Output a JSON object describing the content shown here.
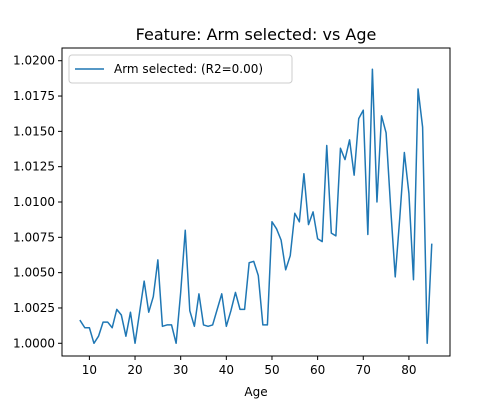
{
  "chart_data": {
    "type": "line",
    "title": "Feature: Arm selected: vs Age",
    "xlabel": "Age",
    "ylabel": "",
    "xlim": [
      4,
      89
    ],
    "ylim": [
      0.9991,
      1.0209
    ],
    "xticks": [
      10,
      20,
      30,
      40,
      50,
      60,
      70,
      80
    ],
    "yticks": [
      1.0,
      1.0025,
      1.005,
      1.0075,
      1.01,
      1.0125,
      1.015,
      1.0175,
      1.02
    ],
    "grid": false,
    "legend_position": "top-left",
    "series": [
      {
        "name": "Arm selected: (R2=0.00)",
        "color": "#1f77b4",
        "x": [
          8,
          9,
          10,
          11,
          12,
          13,
          14,
          15,
          16,
          17,
          18,
          19,
          20,
          21,
          22,
          23,
          24,
          25,
          26,
          27,
          28,
          29,
          30,
          31,
          32,
          33,
          34,
          35,
          36,
          37,
          38,
          39,
          40,
          41,
          42,
          43,
          44,
          45,
          46,
          47,
          48,
          49,
          50,
          51,
          52,
          53,
          54,
          55,
          56,
          57,
          58,
          59,
          60,
          61,
          62,
          63,
          64,
          65,
          66,
          67,
          68,
          69,
          70,
          71,
          72,
          73,
          74,
          75,
          76,
          77,
          78,
          79,
          80,
          81,
          82,
          83,
          84,
          85
        ],
        "values": [
          1.0016,
          1.0011,
          1.0011,
          1.0,
          1.0005,
          1.0015,
          1.0015,
          1.0011,
          1.0024,
          1.002,
          1.0005,
          1.0022,
          1.0,
          1.0022,
          1.0044,
          1.0022,
          1.0033,
          1.0059,
          1.0012,
          1.0013,
          1.0013,
          1.0,
          1.0036,
          1.008,
          1.0023,
          1.0012,
          1.0035,
          1.0013,
          1.0012,
          1.0013,
          1.0024,
          1.0035,
          1.0012,
          1.0023,
          1.0036,
          1.0024,
          1.0024,
          1.0057,
          1.0058,
          1.0048,
          1.0013,
          1.0013,
          1.0086,
          1.0081,
          1.0073,
          1.0052,
          1.0062,
          1.0092,
          1.0086,
          1.012,
          1.0084,
          1.0093,
          1.0074,
          1.0072,
          1.014,
          1.0078,
          1.0076,
          1.0138,
          1.013,
          1.0144,
          1.0119,
          1.0159,
          1.0165,
          1.0077,
          1.0194,
          1.01,
          1.0161,
          1.0149,
          1.0096,
          1.0047,
          1.0089,
          1.0135,
          1.0106,
          1.0045,
          1.018,
          1.0153,
          1.0,
          1.007
        ]
      }
    ]
  }
}
